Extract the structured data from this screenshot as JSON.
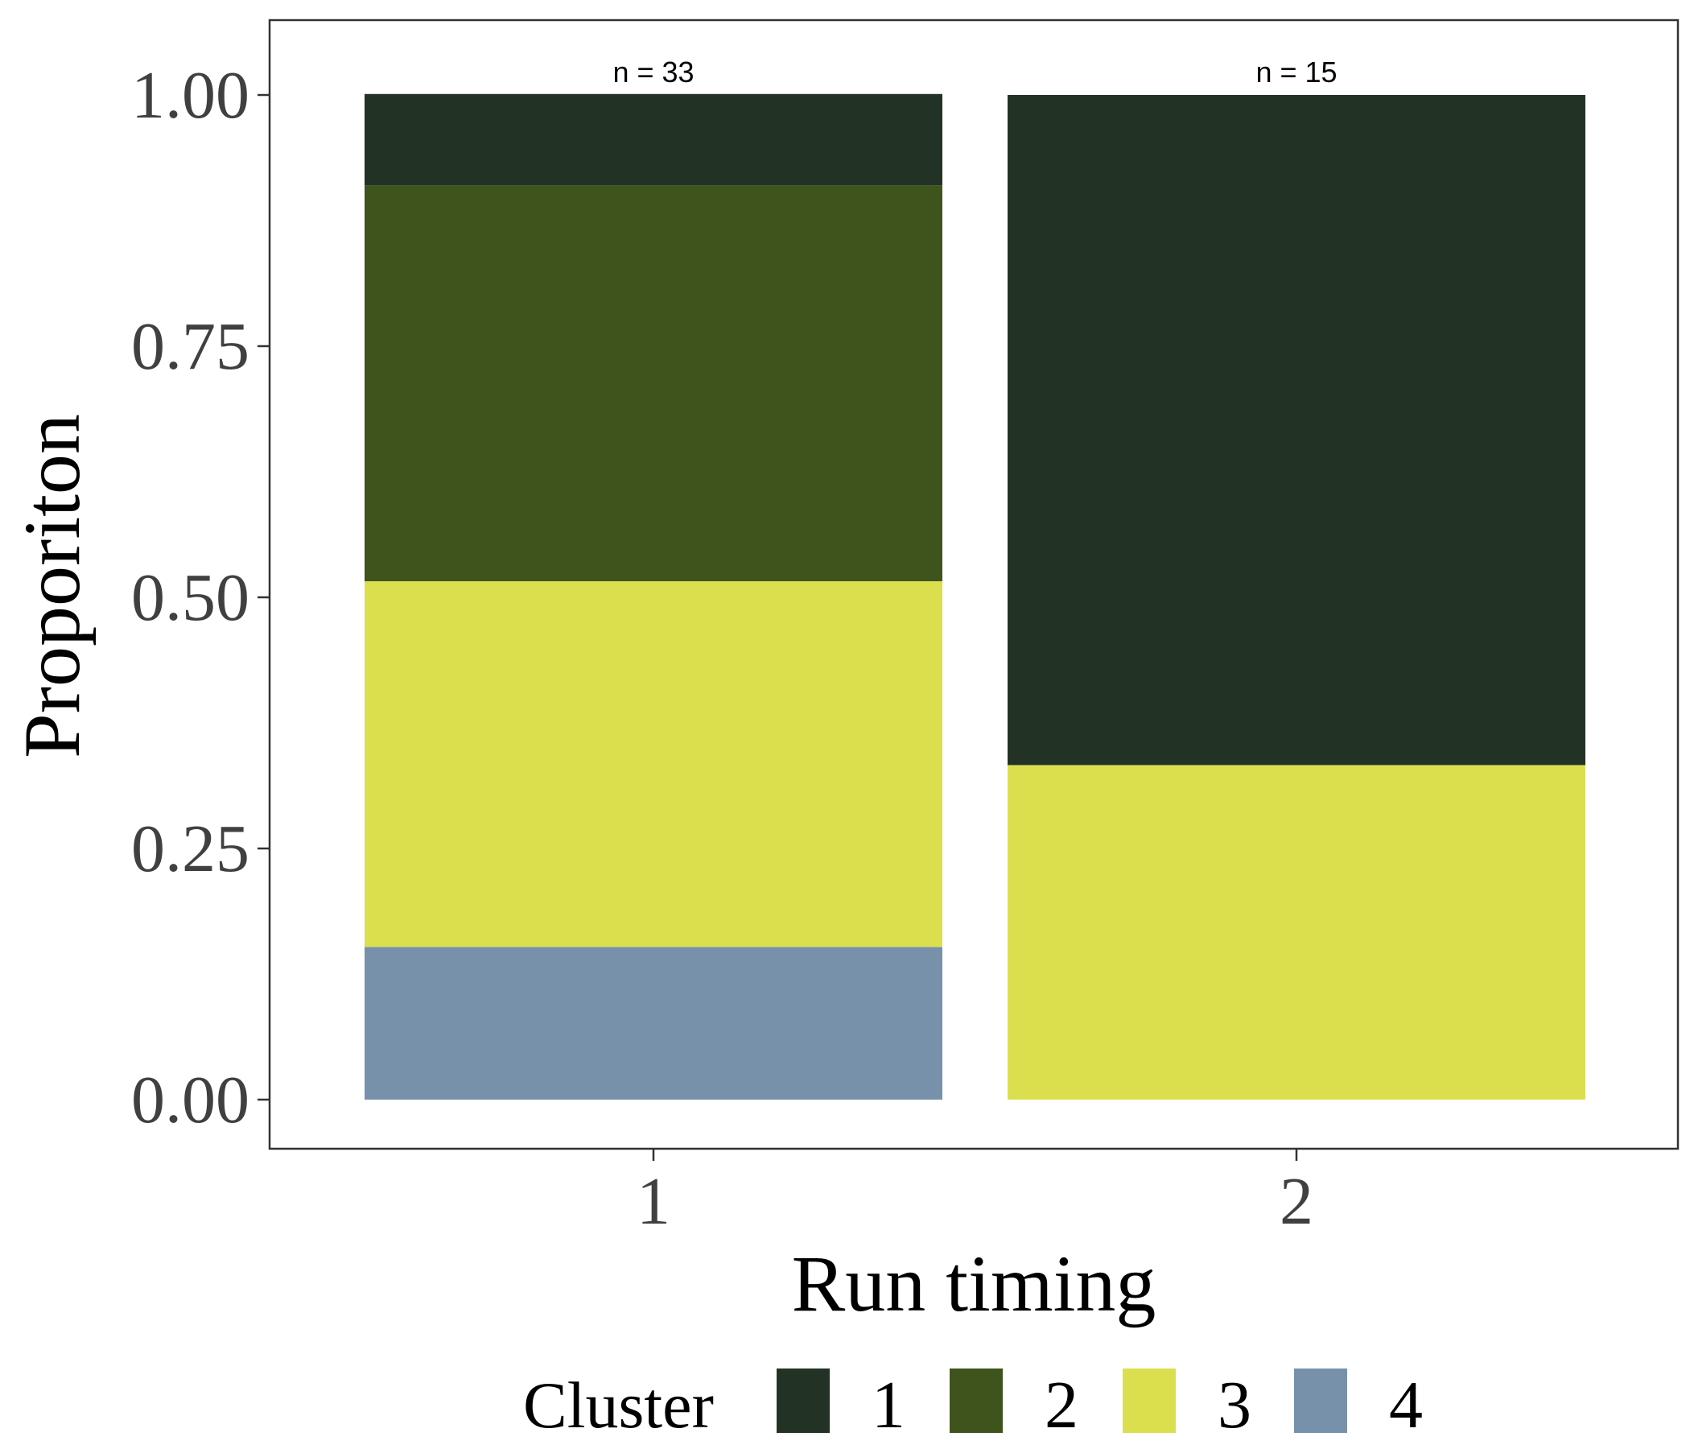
{
  "chart_data": {
    "type": "bar",
    "stacked": true,
    "xlabel": "Run timing",
    "ylabel": "Proporiton",
    "ylim": [
      0,
      1.05
    ],
    "yticks": [
      "0.00",
      "0.25",
      "0.50",
      "0.75",
      "1.00"
    ],
    "ytick_values": [
      0,
      0.25,
      0.5,
      0.75,
      1.0
    ],
    "categories": [
      "1",
      "2"
    ],
    "annotations": [
      "n = 33",
      "n = 15"
    ],
    "grid": false,
    "legend": {
      "title": "Cluster",
      "placement": "bottom",
      "entries": [
        "1",
        "2",
        "3",
        "4"
      ]
    },
    "series": [
      {
        "name": "1",
        "color": "#223326",
        "values": [
          0.091,
          0.667
        ]
      },
      {
        "name": "2",
        "color": "#3f541d",
        "values": [
          0.394,
          0.0
        ]
      },
      {
        "name": "3",
        "color": "#dbdf4e",
        "values": [
          0.364,
          0.333
        ]
      },
      {
        "name": "4",
        "color": "#7891ab",
        "values": [
          0.152,
          0.0
        ]
      }
    ]
  }
}
